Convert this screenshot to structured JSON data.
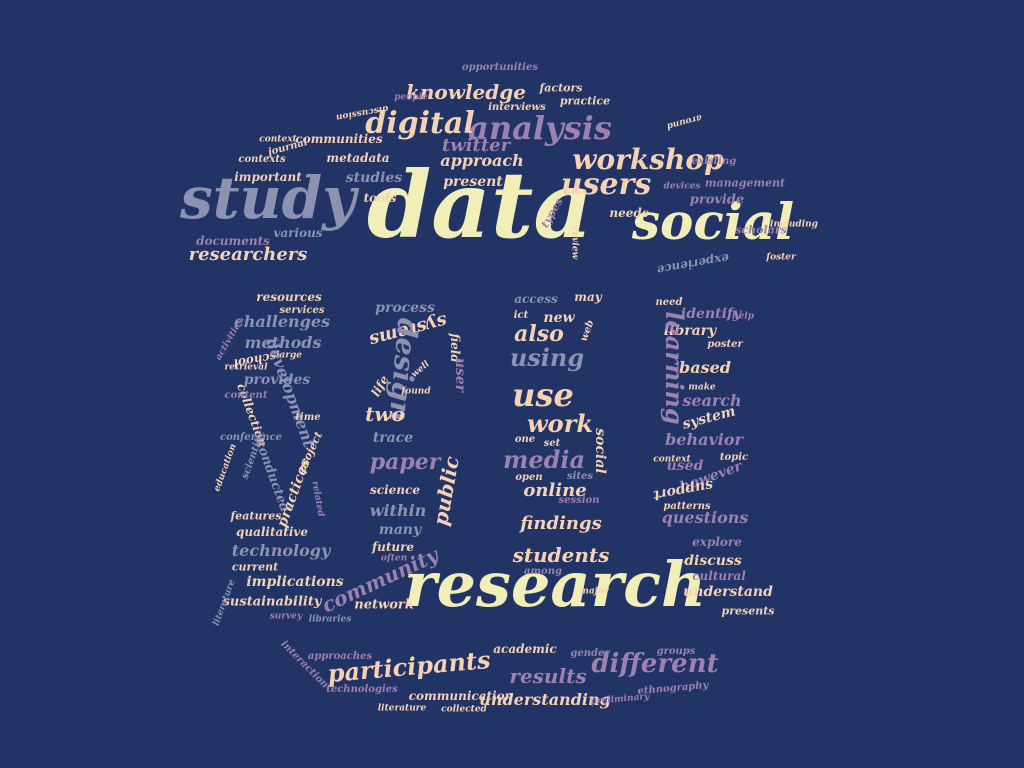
{
  "palette": {
    "background": "#223366",
    "cream": "#f2eeb8",
    "peach": "#f4d2b2",
    "mauve": "#9c82ae",
    "slate": "#8c93b0",
    "lilac": "#b78fbd"
  },
  "words": [
    {
      "text": "data",
      "c": "cream"
    },
    {
      "text": "research",
      "c": "cream"
    },
    {
      "text": "study",
      "c": "slate"
    },
    {
      "text": "social",
      "c": "cream"
    },
    {
      "text": "analysis",
      "c": "mauve"
    },
    {
      "text": "digital",
      "c": "peach"
    },
    {
      "text": "users",
      "c": "peach"
    },
    {
      "text": "workshop",
      "c": "peach"
    },
    {
      "text": "knowledge",
      "c": "peach"
    },
    {
      "text": "twitter",
      "c": "mauve"
    },
    {
      "text": "approach",
      "c": "peach"
    },
    {
      "text": "present",
      "c": "peach"
    },
    {
      "text": "metadata",
      "c": "peach"
    },
    {
      "text": "communities",
      "c": "peach"
    },
    {
      "text": "studies",
      "c": "slate"
    },
    {
      "text": "tools",
      "c": "peach"
    },
    {
      "text": "researchers",
      "c": "peach"
    },
    {
      "text": "documents",
      "c": "mauve"
    },
    {
      "text": "various",
      "c": "slate"
    },
    {
      "text": "important",
      "c": "peach"
    },
    {
      "text": "contexts",
      "c": "peach"
    },
    {
      "text": "journal",
      "c": "peach"
    },
    {
      "text": "context",
      "c": "peach"
    },
    {
      "text": "people",
      "c": "mauve"
    },
    {
      "text": "opportunities",
      "c": "mauve"
    },
    {
      "text": "interviews",
      "c": "peach"
    },
    {
      "text": "factors",
      "c": "peach"
    },
    {
      "text": "practice",
      "c": "peach"
    },
    {
      "text": "discussion",
      "c": "peach"
    },
    {
      "text": "around",
      "c": "peach"
    },
    {
      "text": "existing",
      "c": "mauve"
    },
    {
      "text": "management",
      "c": "mauve"
    },
    {
      "text": "devices",
      "c": "mauve"
    },
    {
      "text": "provide",
      "c": "mauve"
    },
    {
      "text": "scholars",
      "c": "mauve"
    },
    {
      "text": "including",
      "c": "peach"
    },
    {
      "text": "experience",
      "c": "slate"
    },
    {
      "text": "needs",
      "c": "peach"
    },
    {
      "text": "types",
      "c": "mauve"
    },
    {
      "text": "review",
      "c": "peach"
    },
    {
      "text": "foster",
      "c": "peach"
    },
    {
      "text": "resources",
      "c": "peach"
    },
    {
      "text": "services",
      "c": "peach"
    },
    {
      "text": "challenges",
      "c": "slate"
    },
    {
      "text": "methods",
      "c": "slate"
    },
    {
      "text": "activities",
      "c": "mauve"
    },
    {
      "text": "school",
      "c": "peach"
    },
    {
      "text": "large",
      "c": "peach"
    },
    {
      "text": "provides",
      "c": "slate"
    },
    {
      "text": "retrieval",
      "c": "peach"
    },
    {
      "text": "development",
      "c": "slate"
    },
    {
      "text": "collection",
      "c": "peach"
    },
    {
      "text": "content",
      "c": "mauve"
    },
    {
      "text": "time",
      "c": "peach"
    },
    {
      "text": "conference",
      "c": "slate"
    },
    {
      "text": "project",
      "c": "peach"
    },
    {
      "text": "education",
      "c": "peach"
    },
    {
      "text": "scientific",
      "c": "slate"
    },
    {
      "text": "conducted",
      "c": "slate"
    },
    {
      "text": "practices",
      "c": "peach"
    },
    {
      "text": "related",
      "c": "mauve"
    },
    {
      "text": "features",
      "c": "peach"
    },
    {
      "text": "qualitative",
      "c": "peach"
    },
    {
      "text": "technology",
      "c": "slate"
    },
    {
      "text": "current",
      "c": "peach"
    },
    {
      "text": "implications",
      "c": "peach"
    },
    {
      "text": "sustainability",
      "c": "peach"
    },
    {
      "text": "literature",
      "c": "slate"
    },
    {
      "text": "survey",
      "c": "mauve"
    },
    {
      "text": "libraries",
      "c": "slate"
    },
    {
      "text": "network",
      "c": "peach"
    },
    {
      "text": "community",
      "c": "mauve"
    },
    {
      "text": "process",
      "c": "slate"
    },
    {
      "text": "systems",
      "c": "peach"
    },
    {
      "text": "design",
      "c": "slate"
    },
    {
      "text": "field",
      "c": "peach"
    },
    {
      "text": "user",
      "c": "mauve"
    },
    {
      "text": "life",
      "c": "peach"
    },
    {
      "text": "found",
      "c": "peach"
    },
    {
      "text": "well",
      "c": "peach"
    },
    {
      "text": "two",
      "c": "peach"
    },
    {
      "text": "trace",
      "c": "slate"
    },
    {
      "text": "paper",
      "c": "mauve"
    },
    {
      "text": "public",
      "c": "peach"
    },
    {
      "text": "science",
      "c": "peach"
    },
    {
      "text": "within",
      "c": "slate"
    },
    {
      "text": "many",
      "c": "slate"
    },
    {
      "text": "future",
      "c": "peach"
    },
    {
      "text": "often",
      "c": "mauve"
    },
    {
      "text": "access",
      "c": "slate"
    },
    {
      "text": "may",
      "c": "peach"
    },
    {
      "text": "ict",
      "c": "peach"
    },
    {
      "text": "new",
      "c": "peach"
    },
    {
      "text": "web",
      "c": "peach"
    },
    {
      "text": "also",
      "c": "peach"
    },
    {
      "text": "using",
      "c": "slate"
    },
    {
      "text": "use",
      "c": "peach"
    },
    {
      "text": "work",
      "c": "peach"
    },
    {
      "text": "one",
      "c": "peach"
    },
    {
      "text": "set",
      "c": "peach"
    },
    {
      "text": "media",
      "c": "mauve"
    },
    {
      "text": "social2",
      "c": "peach"
    },
    {
      "text": "online",
      "c": "peach"
    },
    {
      "text": "sites",
      "c": "slate"
    },
    {
      "text": "open",
      "c": "peach"
    },
    {
      "text": "session",
      "c": "mauve"
    },
    {
      "text": "findings",
      "c": "peach"
    },
    {
      "text": "students",
      "c": "peach"
    },
    {
      "text": "among",
      "c": "mauve"
    },
    {
      "text": "major",
      "c": "peach"
    },
    {
      "text": "need",
      "c": "peach"
    },
    {
      "text": "identify",
      "c": "mauve"
    },
    {
      "text": "help",
      "c": "mauve"
    },
    {
      "text": "library",
      "c": "peach"
    },
    {
      "text": "poster",
      "c": "peach"
    },
    {
      "text": "learning",
      "c": "mauve"
    },
    {
      "text": "based",
      "c": "peach"
    },
    {
      "text": "make",
      "c": "peach"
    },
    {
      "text": "search",
      "c": "mauve"
    },
    {
      "text": "system",
      "c": "peach"
    },
    {
      "text": "behavior",
      "c": "mauve"
    },
    {
      "text": "context2",
      "c": "peach"
    },
    {
      "text": "used",
      "c": "mauve"
    },
    {
      "text": "topic",
      "c": "peach"
    },
    {
      "text": "however",
      "c": "mauve"
    },
    {
      "text": "support",
      "c": "peach"
    },
    {
      "text": "patterns",
      "c": "peach"
    },
    {
      "text": "questions",
      "c": "mauve"
    },
    {
      "text": "explore",
      "c": "mauve"
    },
    {
      "text": "discuss",
      "c": "peach"
    },
    {
      "text": "cultural",
      "c": "mauve"
    },
    {
      "text": "understand",
      "c": "peach"
    },
    {
      "text": "presents",
      "c": "peach"
    },
    {
      "text": "participants",
      "c": "peach"
    },
    {
      "text": "results",
      "c": "mauve"
    },
    {
      "text": "different",
      "c": "mauve"
    },
    {
      "text": "academic",
      "c": "peach"
    },
    {
      "text": "gender",
      "c": "mauve"
    },
    {
      "text": "groups",
      "c": "mauve"
    },
    {
      "text": "understanding",
      "c": "peach"
    },
    {
      "text": "communication",
      "c": "peach"
    },
    {
      "text": "technologies",
      "c": "mauve"
    },
    {
      "text": "approaches",
      "c": "mauve"
    },
    {
      "text": "interaction",
      "c": "mauve"
    },
    {
      "text": "collected",
      "c": "peach"
    },
    {
      "text": "literature2",
      "c": "peach"
    },
    {
      "text": "preliminary",
      "c": "mauve"
    },
    {
      "text": "ethnography",
      "c": "mauve"
    }
  ]
}
